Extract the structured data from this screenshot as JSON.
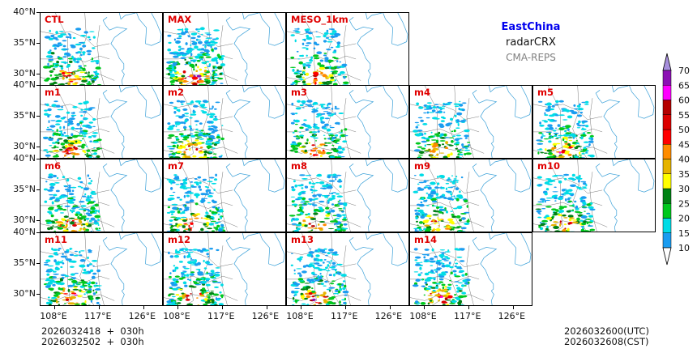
{
  "title": {
    "region": "EastChina",
    "variable": "radarCRX",
    "system": "CMA-REPS"
  },
  "colors": {
    "region": "#0000ee",
    "variable": "#000000",
    "system": "#808080",
    "panel_label": "#e00000"
  },
  "panels": [
    {
      "label": "CTL",
      "peak": 0.55
    },
    {
      "label": "MAX",
      "peak": 1.0
    },
    {
      "label": "MESO_1km",
      "peak": 0.5
    },
    {
      "label": "m1",
      "peak": 0.6
    },
    {
      "label": "m2",
      "peak": 0.7
    },
    {
      "label": "m3",
      "peak": 0.55
    },
    {
      "label": "m4",
      "peak": 0.55
    },
    {
      "label": "m5",
      "peak": 0.6
    },
    {
      "label": "m6",
      "peak": 0.6
    },
    {
      "label": "m7",
      "peak": 0.6
    },
    {
      "label": "m8",
      "peak": 0.65
    },
    {
      "label": "m9",
      "peak": 0.55
    },
    {
      "label": "m10",
      "peak": 0.65
    },
    {
      "label": "m11",
      "peak": 0.7
    },
    {
      "label": "m12",
      "peak": 0.6
    },
    {
      "label": "m13",
      "peak": 0.65
    },
    {
      "label": "m14",
      "peak": 0.65
    }
  ],
  "axes": {
    "lat_labels": [
      "40°N",
      "35°N",
      "30°N"
    ],
    "lon_labels": [
      "108°E",
      "117°E",
      "126°E"
    ],
    "lat_range": [
      28,
      40
    ],
    "lon_range": [
      105,
      130
    ]
  },
  "colorbar": {
    "levels": [
      10,
      15,
      20,
      25,
      30,
      35,
      40,
      45,
      50,
      55,
      60,
      65,
      70
    ],
    "colors": [
      "#1a9cf0",
      "#00dce6",
      "#00c81e",
      "#008214",
      "#ffff00",
      "#e6b400",
      "#ff8c00",
      "#ff0000",
      "#dc0000",
      "#b40000",
      "#ff00ff",
      "#8c10b4"
    ],
    "over_color": "#a78fdd",
    "under_color": "#ffffff"
  },
  "footer": {
    "init_line1": "2026032418  +  030h",
    "init_line2": "2026032502  +  030h",
    "valid_utc": "2026032600(UTC)",
    "valid_cst": "2026032608(CST)"
  }
}
